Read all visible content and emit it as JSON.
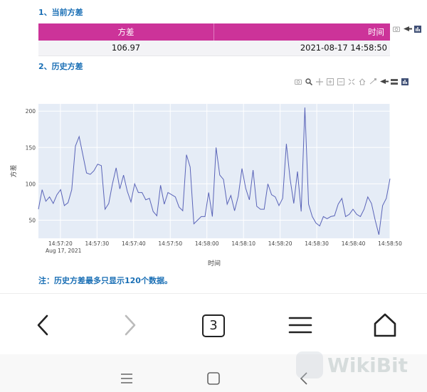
{
  "section1_title": "1、当前方差",
  "section2_title": "2、历史方差",
  "table": {
    "col_variance": "方差",
    "col_time": "时间",
    "row_variance": "106.97",
    "row_time": "2021-08-17 14:58:50"
  },
  "note": "注：历史方差最多只显示120个数据。",
  "nav": {
    "tab_count": "3"
  },
  "watermark": "WikiBit",
  "chart_data": {
    "type": "line",
    "xlabel": "时间",
    "ylabel": "方差",
    "x_start": "14:57:14",
    "x_end": "14:58:50",
    "x_ticks": [
      "14:57:20",
      "14:57:30",
      "14:57:40",
      "14:57:50",
      "14:58:00",
      "14:58:10",
      "14:58:20",
      "14:58:30",
      "14:58:40",
      "14:58:50"
    ],
    "x_tick_date": "Aug 17, 2021",
    "y_ticks": [
      50,
      100,
      150,
      200
    ],
    "ylim": [
      25,
      210
    ],
    "line_color": "#5a64b8",
    "background": "#e5ecf6",
    "grid": true,
    "values": [
      65,
      92,
      76,
      82,
      73,
      85,
      92,
      70,
      74,
      92,
      152,
      165,
      140,
      115,
      113,
      118,
      127,
      125,
      65,
      73,
      100,
      122,
      93,
      112,
      90,
      75,
      100,
      88,
      88,
      78,
      80,
      62,
      56,
      98,
      72,
      88,
      85,
      82,
      68,
      63,
      140,
      123,
      45,
      50,
      55,
      55,
      88,
      55,
      150,
      112,
      106,
      72,
      84,
      63,
      83,
      121,
      94,
      78,
      119,
      69,
      65,
      65,
      100,
      85,
      82,
      70,
      80,
      155,
      107,
      73,
      117,
      62,
      205,
      72,
      55,
      46,
      42,
      55,
      52,
      55,
      56,
      72,
      80,
      55,
      58,
      65,
      58,
      55,
      65,
      82,
      73,
      50,
      30,
      70,
      80,
      107
    ]
  }
}
